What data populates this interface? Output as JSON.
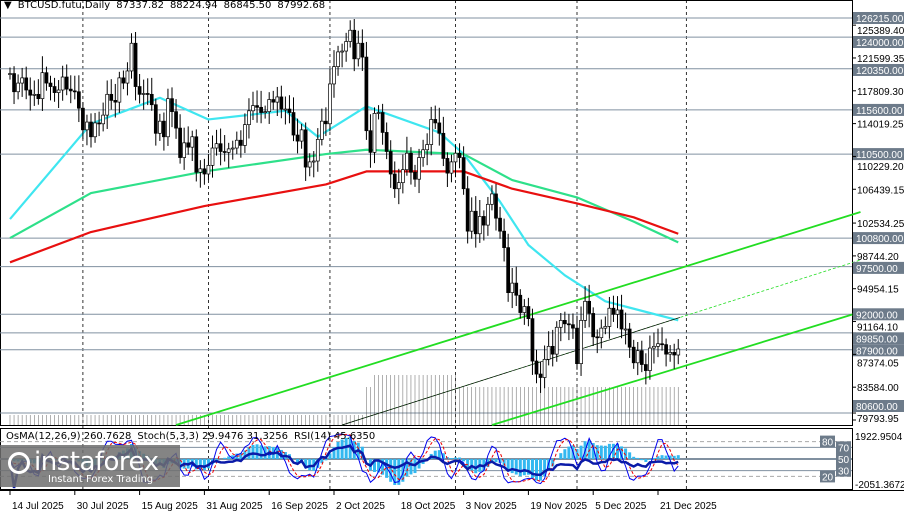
{
  "header": {
    "symbol": "BTCUSD.futu,Daily",
    "open": "87337.82",
    "high": "88224.94",
    "low": "86845.50",
    "close": "87992.68"
  },
  "indicator": {
    "osma": "OsMA(12,26,9) 260.7628",
    "stoch": "Stoch(5,3,3) 29.9476 31.3256",
    "rsi": "RSI(14) 45.6350",
    "axis_top": "1922.9504",
    "axis_bottom": "-2051.3672",
    "axis_zero": "0.0000",
    "levels": [
      "80",
      "70",
      "50",
      "30",
      "20"
    ]
  },
  "watermark": {
    "brand": "instaforex",
    "tagline": "Instant Forex Trading"
  },
  "colors": {
    "bull_candle": "#000000",
    "bear_candle": "#000000",
    "ma_fast": "#3fe6f0",
    "ma_mid": "#2ee08a",
    "ma_slow": "#e81010",
    "channel": "#22dd22",
    "level_line": "#8090a0",
    "level_label_bg": "#6d7b8a",
    "osma_hist": "#33b8f0",
    "stoch_main": "#0000ee",
    "stoch_signal": "#ee0000",
    "rsi": "#0a1aa8"
  },
  "chart_data": {
    "type": "candlestick",
    "title": "BTCUSD.futu,Daily",
    "x_start_date": "2025-07-14",
    "closes": [
      119.8,
      117.7,
      118.7,
      119.3,
      117.9,
      117.3,
      117.4,
      116.9,
      119.9,
      118.7,
      118.3,
      117.6,
      117.9,
      119.4,
      118.0,
      117.8,
      117.7,
      115.8,
      113.3,
      114.2,
      112.5,
      114.1,
      114.0,
      115.0,
      117.4,
      116.7,
      116.5,
      119.3,
      118.7,
      120.1,
      123.3,
      118.3,
      117.4,
      117.5,
      117.4,
      116.2,
      112.9,
      114.3,
      112.5,
      116.9,
      115.4,
      113.5,
      110.1,
      111.8,
      111.3,
      112.5,
      108.4,
      108.8,
      108.2,
      109.2,
      111.2,
      111.7,
      110.8,
      110.7,
      111.1,
      111.2,
      112.1,
      111.5,
      113.9,
      115.5,
      116.1,
      115.9,
      115.3,
      115.4,
      116.8,
      116.5,
      117.1,
      115.7,
      115.7,
      115.3,
      112.7,
      112.0,
      113.3,
      109.0,
      109.6,
      109.7,
      112.2,
      114.3,
      114.0,
      118.6,
      120.6,
      122.3,
      122.4,
      123.5,
      124.8,
      121.5,
      123.3,
      121.7,
      113.2,
      110.7,
      115.2,
      115.3,
      113.0,
      110.8,
      108.2,
      106.5,
      107.2,
      108.7,
      110.6,
      108.4,
      107.6,
      110.1,
      111.0,
      111.6,
      114.5,
      114.1,
      112.9,
      110.0,
      108.3,
      109.6,
      110.6,
      110.1,
      106.5,
      101.6,
      103.9,
      101.3,
      103.3,
      102.3,
      104.7,
      105.9,
      103.1,
      101.6,
      99.7,
      94.5,
      95.6,
      94.2,
      92.2,
      92.9,
      91.5,
      86.6,
      85.1,
      84.7,
      86.8,
      88.3,
      87.4,
      90.5,
      91.3,
      90.9,
      90.8,
      90.4,
      86.3,
      91.3,
      93.5,
      92.1,
      89.4,
      89.3,
      90.4,
      90.6,
      92.7,
      92.0,
      92.5,
      90.3,
      90.3,
      88.2,
      86.4,
      87.8,
      86.2,
      85.5,
      88.1,
      88.3,
      88.6,
      88.5,
      87.4,
      87.6,
      87.3,
      87.99
    ],
    "close_unit": "thousand USD",
    "moving_averages": [
      {
        "color": "#3fe6f0",
        "dates": [
          "2025-07-14",
          "2025-08-03",
          "2025-08-20",
          "2025-09-01",
          "2025-09-20",
          "2025-09-28",
          "2025-10-10",
          "2025-10-28",
          "2025-11-03",
          "2025-11-12",
          "2025-11-19",
          "2025-11-28",
          "2025-12-08",
          "2025-12-26"
        ],
        "values": [
          103000,
          114000,
          117000,
          114500,
          115500,
          112500,
          116000,
          113000,
          110500,
          105000,
          100000,
          96500,
          93500,
          91300
        ]
      },
      {
        "color": "#2ee08a",
        "dates": [
          "2025-07-14",
          "2025-08-03",
          "2025-08-31",
          "2025-09-30",
          "2025-10-10",
          "2025-11-03",
          "2025-11-15",
          "2025-12-01",
          "2025-12-15",
          "2025-12-26"
        ],
        "values": [
          100800,
          106000,
          108500,
          110500,
          111000,
          110500,
          107500,
          105500,
          102700,
          100300
        ]
      },
      {
        "color": "#e81010",
        "dates": [
          "2025-07-14",
          "2025-08-03",
          "2025-08-31",
          "2025-09-30",
          "2025-10-10",
          "2025-11-03",
          "2025-11-15",
          "2025-12-01",
          "2025-12-15",
          "2025-12-26"
        ],
        "values": [
          98000,
          101500,
          104500,
          107000,
          108500,
          108500,
          106500,
          104800,
          103200,
          101300
        ]
      }
    ],
    "trendlines": [
      {
        "style": "solid",
        "from": [
          "2025-08-24",
          79218
        ],
        "to": [
          "2026-02-09",
          103813
        ]
      },
      {
        "style": "solid",
        "from": [
          "2025-11-10",
          79218
        ],
        "to": [
          "2026-02-09",
          92266
        ]
      },
      {
        "style": "dashed",
        "from": [
          "2025-10-04",
          79218
        ],
        "to": [
          "2026-02-09",
          98270
        ]
      }
    ],
    "levels": [
      "126215.00",
      "124000.00",
      "120350.00",
      "115600.00",
      "110500.00",
      "100800.00",
      "97500.00",
      "92000.00",
      "89850.00",
      "87900.00",
      "80600.00"
    ],
    "y_ticks": [
      "125389.40",
      "121599.35",
      "117809.30",
      "114019.25",
      "110229.20",
      "106439.15",
      "102534.25",
      "98744.20",
      "94954.15",
      "91164.10",
      "87374.05",
      "83584.00",
      "79793.95"
    ],
    "ylim": [
      79793.95,
      126215.0
    ],
    "x_ticks": [
      {
        "date": "2025-07-14",
        "label": "14 Jul 2025"
      },
      {
        "date": "2025-07-30",
        "label": "30 Jul 2025"
      },
      {
        "date": "2025-08-15",
        "label": "15 Aug 2025"
      },
      {
        "date": "2025-08-31",
        "label": "31 Aug 2025"
      },
      {
        "date": "2025-09-16",
        "label": "16 Sep 2025"
      },
      {
        "date": "2025-10-02",
        "label": "2 Oct 2025"
      },
      {
        "date": "2025-10-18",
        "label": "18 Oct 2025"
      },
      {
        "date": "2025-11-03",
        "label": "3 Nov 2025"
      },
      {
        "date": "2025-11-19",
        "label": "19 Nov 2025"
      },
      {
        "date": "2025-12-05",
        "label": "5 Dec 2025"
      },
      {
        "date": "2025-12-21",
        "label": "21 Dec 2025"
      }
    ],
    "grid": false
  }
}
